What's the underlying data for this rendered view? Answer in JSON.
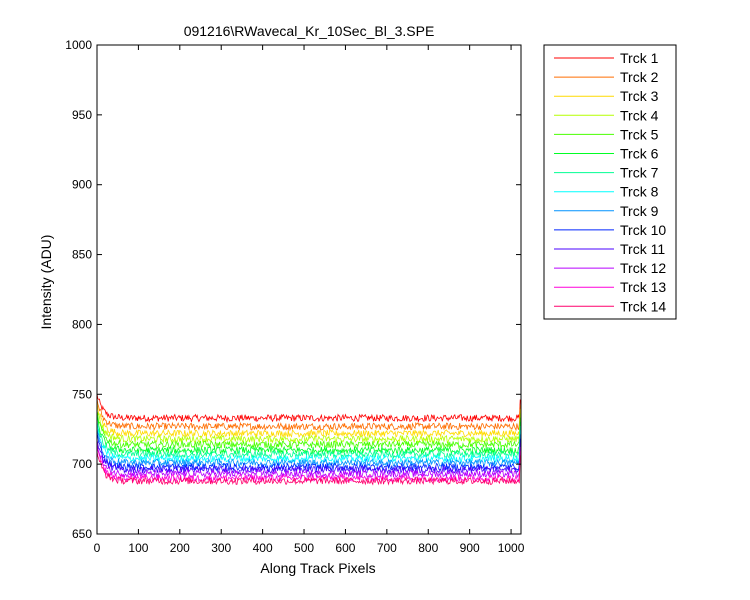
{
  "chart_data": {
    "type": "line",
    "title": "091216\\RWavecal_Kr_10Sec_Bl_3.SPE",
    "xlabel": "Along Track Pixels",
    "ylabel": "Intensity (ADU)",
    "xlim": [
      0,
      1024
    ],
    "ylim": [
      650,
      1000
    ],
    "xticks": [
      0,
      100,
      200,
      300,
      400,
      500,
      600,
      700,
      800,
      900,
      1000
    ],
    "yticks": [
      650,
      700,
      750,
      800,
      850,
      900,
      950,
      1000
    ],
    "grid": false,
    "legend_position": "outside-right",
    "series": [
      {
        "name": "Trck 1",
        "color": "#ff0000",
        "start": 750,
        "baseline": 733,
        "noise": 5
      },
      {
        "name": "Trck 2",
        "color": "#ff6d00",
        "start": 746,
        "baseline": 727,
        "noise": 5
      },
      {
        "name": "Trck 3",
        "color": "#ffda00",
        "start": 743,
        "baseline": 722,
        "noise": 5
      },
      {
        "name": "Trck 4",
        "color": "#b6ff00",
        "start": 740,
        "baseline": 718,
        "noise": 5
      },
      {
        "name": "Trck 5",
        "color": "#49ff00",
        "start": 737,
        "baseline": 714,
        "noise": 5
      },
      {
        "name": "Trck 6",
        "color": "#00ff24",
        "start": 734,
        "baseline": 710,
        "noise": 5
      },
      {
        "name": "Trck 7",
        "color": "#00ff92",
        "start": 731,
        "baseline": 707,
        "noise": 5
      },
      {
        "name": "Trck 8",
        "color": "#00ffff",
        "start": 728,
        "baseline": 704,
        "noise": 5
      },
      {
        "name": "Trck 9",
        "color": "#0092ff",
        "start": 725,
        "baseline": 701,
        "noise": 5
      },
      {
        "name": "Trck 10",
        "color": "#0024ff",
        "start": 722,
        "baseline": 698,
        "noise": 5
      },
      {
        "name": "Trck 11",
        "color": "#4900ff",
        "start": 719,
        "baseline": 696,
        "noise": 5
      },
      {
        "name": "Trck 12",
        "color": "#b600ff",
        "start": 716,
        "baseline": 693,
        "noise": 5
      },
      {
        "name": "Trck 13",
        "color": "#ff00da",
        "start": 713,
        "baseline": 690,
        "noise": 5
      },
      {
        "name": "Trck 14",
        "color": "#ff006d",
        "start": 710,
        "baseline": 688,
        "noise": 5
      }
    ]
  }
}
